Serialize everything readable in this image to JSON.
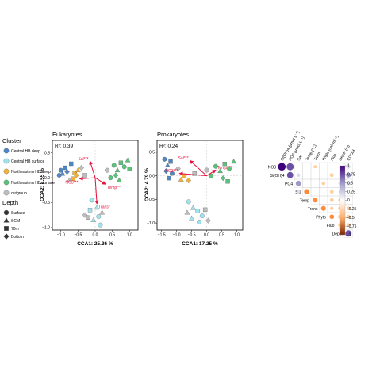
{
  "legend": {
    "cluster_title": "Cluster",
    "clusters": [
      {
        "label": "Central HB deep",
        "color": "#4f86c6"
      },
      {
        "label": "Central HB surface",
        "color": "#9fe3ef"
      },
      {
        "label": "Northeastern HB deep",
        "color": "#f2b23a"
      },
      {
        "label": "Northeastern HB surface",
        "color": "#5cc27a"
      },
      {
        "label": "outgroup",
        "color": "#bdbdbd"
      }
    ],
    "depth_title": "Depth",
    "depths": [
      {
        "label": "Surface",
        "shape": "circle"
      },
      {
        "label": "SCM",
        "shape": "triangle"
      },
      {
        "label": "70m",
        "shape": "square"
      },
      {
        "label": "Bottom",
        "shape": "diamond"
      }
    ]
  },
  "chart_data": [
    {
      "type": "scatter",
      "title": "Eukaryotes",
      "r2": "R²: 0.39",
      "xlabel": "CCA1: 25.36 %",
      "ylabel": "CCA2: 8.55 %",
      "xlim": [
        -1.25,
        1.25
      ],
      "ylim": [
        -1.05,
        0.75
      ],
      "xticks": [
        -1.0,
        -0.5,
        0.0,
        0.5,
        1.0
      ],
      "yticks": [
        -1.0,
        -0.5,
        0.0,
        0.5
      ],
      "xtick_labels": [
        "−1.0",
        "−0.5",
        "0.0",
        "0.5",
        "1.0"
      ],
      "ytick_labels": [
        "−1.0",
        "−0.5",
        "0.0",
        "0.5"
      ],
      "arrows": [
        {
          "label": "Sal***",
          "x": -0.15,
          "y": 0.33
        },
        {
          "label": "NO3***",
          "x": -0.45,
          "y": -0.02
        },
        {
          "label": "Temp***",
          "x": 0.3,
          "y": -0.13
        },
        {
          "label": "Trans*",
          "x": 0.05,
          "y": -0.52
        }
      ],
      "points": [
        {
          "x": -1.0,
          "y": 0.15,
          "cluster": 0,
          "shape": "circle"
        },
        {
          "x": -0.95,
          "y": 0.08,
          "cluster": 0,
          "shape": "triangle"
        },
        {
          "x": -0.88,
          "y": 0.2,
          "cluster": 0,
          "shape": "square"
        },
        {
          "x": -0.82,
          "y": 0.12,
          "cluster": 0,
          "shape": "diamond"
        },
        {
          "x": -1.05,
          "y": 0.05,
          "cluster": 0,
          "shape": "circle"
        },
        {
          "x": -0.7,
          "y": 0.28,
          "cluster": 0,
          "shape": "square"
        },
        {
          "x": -0.6,
          "y": 0.1,
          "cluster": 2,
          "shape": "square"
        },
        {
          "x": -0.55,
          "y": 0.05,
          "cluster": 2,
          "shape": "diamond"
        },
        {
          "x": -0.5,
          "y": 0.15,
          "cluster": 2,
          "shape": "triangle"
        },
        {
          "x": -0.65,
          "y": -0.02,
          "cluster": 2,
          "shape": "square"
        },
        {
          "x": -0.4,
          "y": 0.2,
          "cluster": 4,
          "shape": "diamond"
        },
        {
          "x": -0.3,
          "y": 0.05,
          "cluster": 4,
          "shape": "square"
        },
        {
          "x": -0.75,
          "y": -0.05,
          "cluster": 4,
          "shape": "triangle"
        },
        {
          "x": 0.55,
          "y": 0.25,
          "cluster": 3,
          "shape": "circle"
        },
        {
          "x": 0.65,
          "y": 0.15,
          "cluster": 3,
          "shape": "triangle"
        },
        {
          "x": 0.75,
          "y": 0.3,
          "cluster": 3,
          "shape": "square"
        },
        {
          "x": 0.85,
          "y": 0.22,
          "cluster": 3,
          "shape": "circle"
        },
        {
          "x": 0.95,
          "y": 0.35,
          "cluster": 3,
          "shape": "triangle"
        },
        {
          "x": 1.0,
          "y": 0.18,
          "cluster": 3,
          "shape": "square"
        },
        {
          "x": 0.6,
          "y": 0.05,
          "cluster": 3,
          "shape": "diamond"
        },
        {
          "x": 0.45,
          "y": 0.0,
          "cluster": 3,
          "shape": "circle"
        },
        {
          "x": 0.7,
          "y": -0.05,
          "cluster": 3,
          "shape": "triangle"
        },
        {
          "x": 0.35,
          "y": 0.15,
          "cluster": 4,
          "shape": "circle"
        },
        {
          "x": -0.1,
          "y": -0.45,
          "cluster": 1,
          "shape": "circle"
        },
        {
          "x": 0.05,
          "y": -0.6,
          "cluster": 1,
          "shape": "triangle"
        },
        {
          "x": -0.15,
          "y": -0.65,
          "cluster": 1,
          "shape": "square"
        },
        {
          "x": 0.1,
          "y": -0.78,
          "cluster": 1,
          "shape": "circle"
        },
        {
          "x": -0.05,
          "y": -0.85,
          "cluster": 1,
          "shape": "triangle"
        },
        {
          "x": 0.15,
          "y": -0.95,
          "cluster": 1,
          "shape": "circle"
        },
        {
          "x": -0.2,
          "y": -0.8,
          "cluster": 4,
          "shape": "square"
        },
        {
          "x": 0.2,
          "y": -0.7,
          "cluster": 4,
          "shape": "triangle"
        },
        {
          "x": -0.3,
          "y": -0.75,
          "cluster": 4,
          "shape": "diamond"
        }
      ]
    },
    {
      "type": "scatter",
      "title": "Prokaryotes",
      "r2": "R²: 0.24",
      "xlabel": "CCA1: 17.25 %",
      "ylabel": "CCA2: 4.79 %",
      "xlim": [
        -1.65,
        1.2
      ],
      "ylim": [
        -1.15,
        0.75
      ],
      "xticks": [
        -1.5,
        -1.0,
        -0.5,
        0.0,
        0.5,
        1.0
      ],
      "yticks": [
        -1.0,
        -0.5,
        0.0,
        0.5
      ],
      "xtick_labels": [
        "−1.5",
        "−1.0",
        "−0.5",
        "0.0",
        "0.5",
        "1.0"
      ],
      "ytick_labels": [
        "−1.0",
        "−0.5",
        "0.0",
        "0.5"
      ],
      "arrows": [
        {
          "label": "Sal***",
          "x": -0.55,
          "y": 0.32
        },
        {
          "label": "NO3***",
          "x": -0.9,
          "y": 0.05
        },
        {
          "label": "Temp***",
          "x": 0.3,
          "y": 0.12
        }
      ],
      "points": [
        {
          "x": -1.4,
          "y": 0.35,
          "cluster": 0,
          "shape": "circle"
        },
        {
          "x": -1.3,
          "y": 0.22,
          "cluster": 0,
          "shape": "triangle"
        },
        {
          "x": -1.2,
          "y": 0.3,
          "cluster": 0,
          "shape": "square"
        },
        {
          "x": -1.35,
          "y": 0.1,
          "cluster": 0,
          "shape": "diamond"
        },
        {
          "x": -1.15,
          "y": 0.05,
          "cluster": 0,
          "shape": "circle"
        },
        {
          "x": -1.25,
          "y": -0.05,
          "cluster": 0,
          "shape": "square"
        },
        {
          "x": -0.75,
          "y": 0.0,
          "cluster": 2,
          "shape": "square"
        },
        {
          "x": -0.6,
          "y": -0.1,
          "cluster": 2,
          "shape": "diamond"
        },
        {
          "x": -0.85,
          "y": -0.08,
          "cluster": 2,
          "shape": "triangle"
        },
        {
          "x": -0.4,
          "y": 0.05,
          "cluster": 4,
          "shape": "square"
        },
        {
          "x": -0.95,
          "y": 0.15,
          "cluster": 4,
          "shape": "diamond"
        },
        {
          "x": 0.3,
          "y": 0.2,
          "cluster": 3,
          "shape": "circle"
        },
        {
          "x": 0.45,
          "y": 0.1,
          "cluster": 3,
          "shape": "triangle"
        },
        {
          "x": 0.6,
          "y": 0.25,
          "cluster": 3,
          "shape": "square"
        },
        {
          "x": 0.75,
          "y": 0.15,
          "cluster": 3,
          "shape": "circle"
        },
        {
          "x": 0.9,
          "y": 0.3,
          "cluster": 3,
          "shape": "triangle"
        },
        {
          "x": 0.55,
          "y": -0.05,
          "cluster": 3,
          "shape": "diamond"
        },
        {
          "x": 0.15,
          "y": 0.0,
          "cluster": 3,
          "shape": "circle"
        },
        {
          "x": 0.7,
          "y": -0.12,
          "cluster": 3,
          "shape": "square"
        },
        {
          "x": 0.0,
          "y": 0.12,
          "cluster": 4,
          "shape": "circle"
        },
        {
          "x": -0.6,
          "y": -0.55,
          "cluster": 1,
          "shape": "circle"
        },
        {
          "x": -0.45,
          "y": -0.68,
          "cluster": 1,
          "shape": "triangle"
        },
        {
          "x": -0.3,
          "y": -0.75,
          "cluster": 1,
          "shape": "square"
        },
        {
          "x": -0.15,
          "y": -0.85,
          "cluster": 1,
          "shape": "circle"
        },
        {
          "x": -0.5,
          "y": -0.9,
          "cluster": 1,
          "shape": "triangle"
        },
        {
          "x": -0.25,
          "y": -0.98,
          "cluster": 1,
          "shape": "circle"
        },
        {
          "x": -0.05,
          "y": -0.72,
          "cluster": 4,
          "shape": "square"
        },
        {
          "x": -0.65,
          "y": -0.78,
          "cluster": 4,
          "shape": "triangle"
        },
        {
          "x": 0.05,
          "y": -0.95,
          "cluster": 4,
          "shape": "diamond"
        }
      ]
    },
    {
      "type": "heatmap",
      "col_labels": [
        "Si(OH)4 (µmol L⁻¹)",
        "PO4 (µmol L⁻¹)",
        "Sal",
        "Temp (°C)",
        "Trans",
        "Phyto (cell ml⁻¹)",
        "Fluo",
        "Depth (m)",
        "CDOM"
      ],
      "row_labels": [
        "NO3",
        "Si(OH)4",
        "PO4",
        "Sal",
        "Temp",
        "Trans",
        "Phyto",
        "Fluo",
        "Depth"
      ],
      "values": [
        [
          0.95,
          0.85,
          null,
          null,
          -0.15,
          null,
          null,
          null,
          0.3
        ],
        [
          null,
          0.7,
          0.2,
          null,
          null,
          null,
          -0.3,
          null,
          0.45
        ],
        [
          null,
          null,
          0.55,
          null,
          null,
          -0.2,
          null,
          0.2,
          0.3
        ],
        [
          null,
          null,
          0.25,
          -0.55,
          null,
          null,
          -0.25,
          0.15,
          null
        ],
        [
          null,
          null,
          null,
          null,
          -0.45,
          null,
          -0.3,
          -0.25,
          null
        ],
        [
          null,
          null,
          null,
          null,
          null,
          -0.45,
          -0.2,
          -0.3,
          -0.2
        ],
        [
          null,
          null,
          null,
          null,
          null,
          null,
          -0.4,
          -0.35,
          -0.3
        ],
        [
          null,
          null,
          null,
          null,
          null,
          null,
          null,
          -0.3,
          -0.25
        ],
        [
          null,
          null,
          null,
          null,
          null,
          null,
          null,
          null,
          0.7
        ]
      ],
      "colorbar_ticks": [
        "1",
        "0.75",
        "0.5",
        "0.25",
        "0",
        "-0.25",
        "-0.5",
        "-0.75",
        "-1"
      ]
    }
  ],
  "colors": {
    "arrow": "#e8113d",
    "positive": "#3f007d",
    "negative": "#7f2704"
  }
}
